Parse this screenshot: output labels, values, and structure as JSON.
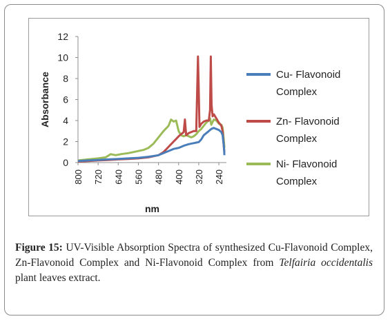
{
  "chart_data": {
    "type": "line",
    "xlabel": "nm",
    "ylabel": "Absorbance",
    "x_reversed": true,
    "xlim": [
      800,
      210
    ],
    "ylim": [
      0,
      12
    ],
    "y_ticks": [
      0,
      2,
      4,
      6,
      8,
      10,
      12
    ],
    "x_ticks": [
      800,
      720,
      640,
      560,
      480,
      400,
      320,
      240
    ],
    "legend_position": "right",
    "grid": false,
    "series": [
      {
        "name": "Cu- Flavonoid Complex",
        "color": "#4a7ebb",
        "points": [
          [
            800,
            0.15
          ],
          [
            760,
            0.2
          ],
          [
            720,
            0.25
          ],
          [
            680,
            0.3
          ],
          [
            640,
            0.35
          ],
          [
            600,
            0.4
          ],
          [
            560,
            0.45
          ],
          [
            520,
            0.55
          ],
          [
            480,
            0.7
          ],
          [
            460,
            0.9
          ],
          [
            440,
            1.1
          ],
          [
            420,
            1.3
          ],
          [
            400,
            1.4
          ],
          [
            380,
            1.6
          ],
          [
            360,
            1.75
          ],
          [
            340,
            1.85
          ],
          [
            330,
            1.9
          ],
          [
            320,
            1.95
          ],
          [
            310,
            2.2
          ],
          [
            300,
            2.6
          ],
          [
            280,
            3.0
          ],
          [
            270,
            3.2
          ],
          [
            260,
            3.3
          ],
          [
            250,
            3.2
          ],
          [
            240,
            3.1
          ],
          [
            230,
            2.9
          ],
          [
            225,
            2.6
          ],
          [
            220,
            1.5
          ],
          [
            218,
            0.7
          ]
        ]
      },
      {
        "name": "Zn- Flavonoid Complex",
        "color": "#be4b48",
        "points": [
          [
            800,
            0.1
          ],
          [
            760,
            0.15
          ],
          [
            720,
            0.2
          ],
          [
            680,
            0.25
          ],
          [
            640,
            0.3
          ],
          [
            600,
            0.35
          ],
          [
            560,
            0.4
          ],
          [
            520,
            0.5
          ],
          [
            480,
            0.7
          ],
          [
            460,
            1.0
          ],
          [
            440,
            1.5
          ],
          [
            420,
            2.0
          ],
          [
            400,
            2.5
          ],
          [
            390,
            2.7
          ],
          [
            380,
            2.9
          ],
          [
            375,
            4.1
          ],
          [
            370,
            2.6
          ],
          [
            360,
            2.8
          ],
          [
            340,
            3.0
          ],
          [
            330,
            3.0
          ],
          [
            326,
            7.0
          ],
          [
            323,
            10.1
          ],
          [
            320,
            7.0
          ],
          [
            317,
            3.4
          ],
          [
            310,
            3.7
          ],
          [
            300,
            3.9
          ],
          [
            290,
            4.0
          ],
          [
            280,
            4.0
          ],
          [
            275,
            5.0
          ],
          [
            272,
            10.1
          ],
          [
            269,
            5.5
          ],
          [
            265,
            4.4
          ],
          [
            260,
            4.6
          ],
          [
            250,
            4.2
          ],
          [
            240,
            3.8
          ],
          [
            230,
            3.5
          ],
          [
            225,
            3.0
          ],
          [
            220,
            1.4
          ],
          [
            218,
            1.0
          ]
        ]
      },
      {
        "name": "Ni- Flavonoid Complex",
        "color": "#9bbb59",
        "points": [
          [
            800,
            0.2
          ],
          [
            760,
            0.3
          ],
          [
            720,
            0.4
          ],
          [
            690,
            0.5
          ],
          [
            670,
            0.8
          ],
          [
            650,
            0.7
          ],
          [
            630,
            0.8
          ],
          [
            600,
            0.9
          ],
          [
            580,
            1.0
          ],
          [
            560,
            1.1
          ],
          [
            540,
            1.2
          ],
          [
            520,
            1.4
          ],
          [
            500,
            1.8
          ],
          [
            480,
            2.4
          ],
          [
            460,
            3.0
          ],
          [
            440,
            3.5
          ],
          [
            430,
            4.1
          ],
          [
            420,
            3.9
          ],
          [
            410,
            4.0
          ],
          [
            400,
            3.0
          ],
          [
            390,
            2.6
          ],
          [
            380,
            2.5
          ],
          [
            370,
            2.6
          ],
          [
            350,
            2.4
          ],
          [
            340,
            2.5
          ],
          [
            330,
            2.7
          ],
          [
            320,
            3.0
          ],
          [
            310,
            3.2
          ],
          [
            300,
            3.5
          ],
          [
            290,
            3.8
          ],
          [
            280,
            4.0
          ],
          [
            275,
            4.2
          ],
          [
            270,
            3.6
          ],
          [
            260,
            4.1
          ],
          [
            250,
            4.0
          ],
          [
            240,
            3.7
          ],
          [
            230,
            3.6
          ],
          [
            225,
            3.3
          ],
          [
            220,
            2.0
          ],
          [
            218,
            1.4
          ]
        ]
      }
    ]
  },
  "caption": {
    "label": "Figure 15:",
    "text_before_italic": " UV-Visible Absorption Spectra of synthesized Cu-Flavonoid Complex, Zn-Flavonoid Complex and Ni-Flavonoid Complex from ",
    "italic": "Telfairia occidentalis",
    "text_after_italic": " plant leaves extract."
  }
}
